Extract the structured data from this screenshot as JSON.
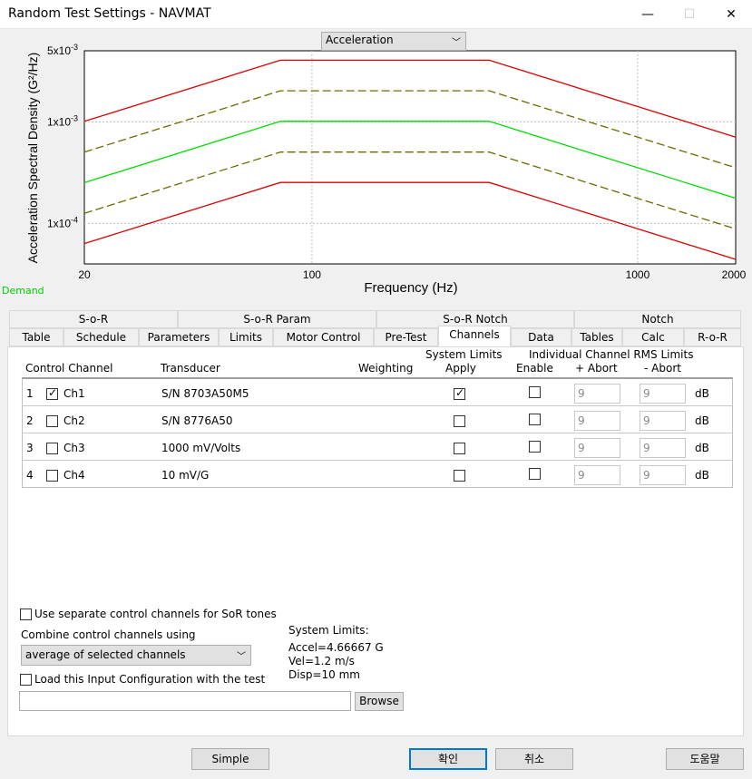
{
  "window": {
    "title": "Random Test Settings - NAVMAT",
    "controls": {
      "minimize": "—",
      "maximize": "☐",
      "close": "✕"
    }
  },
  "plot": {
    "selector_value": "Acceleration",
    "demand_label": "Demand"
  },
  "chart_data": {
    "type": "line",
    "xlabel": "Frequency (Hz)",
    "ylabel": "Acceleration Spectral Density (G²/Hz)",
    "x_scale": "log",
    "y_scale": "log",
    "xlim": [
      20,
      2000
    ],
    "ylim": [
      4e-05,
      0.005
    ],
    "x_ticks": [
      "20",
      "100",
      "1000",
      "2000"
    ],
    "y_ticks": [
      {
        "base": "5x10",
        "exp": "-3"
      },
      {
        "base": "1x10",
        "exp": "-3"
      },
      {
        "base": "1x10",
        "exp": "-4"
      }
    ],
    "grid": true,
    "series": [
      {
        "style": "solid",
        "color": "#dd0000",
        "x": [
          20,
          80,
          350,
          2000
        ],
        "y": [
          0.00101,
          0.00404,
          0.00404,
          0.000707
        ]
      },
      {
        "style": "dashed",
        "color": "#6b6b00",
        "x": [
          20,
          80,
          350,
          2000
        ],
        "y": [
          0.000504,
          0.00202,
          0.00202,
          0.000354
        ]
      },
      {
        "style": "solid",
        "color": "#00dd00",
        "x": [
          20,
          80,
          350,
          2000
        ],
        "y": [
          0.000252,
          0.00101,
          0.00101,
          0.000177
        ]
      },
      {
        "style": "dashed",
        "color": "#6b6b00",
        "x": [
          20,
          80,
          350,
          2000
        ],
        "y": [
          0.000126,
          0.000504,
          0.000504,
          8.84e-05
        ]
      },
      {
        "style": "solid",
        "color": "#dd0000",
        "x": [
          20,
          80,
          350,
          2000
        ],
        "y": [
          6.34e-05,
          0.000253,
          0.000253,
          4.43e-05
        ]
      }
    ]
  },
  "tabs": {
    "row1": [
      "S-o-R",
      "S-o-R Param",
      "S-o-R Notch",
      "Notch"
    ],
    "row2": [
      "Table",
      "Schedule",
      "Parameters",
      "Limits",
      "Motor Control",
      "Pre-Test",
      "Channels",
      "Data",
      "Tables",
      "Calc",
      "R-o-R"
    ],
    "active": "Channels"
  },
  "channels": {
    "headers": {
      "control_channel": "Control Channel",
      "transducer": "Transducer",
      "weighting": "Weighting",
      "system_limits_1": "System Limits",
      "system_limits_2": "Apply",
      "individual_1": "Individual Channel RMS Limits",
      "enable": "Enable",
      "plus_abort": "+ Abort",
      "minus_abort": "- Abort"
    },
    "rows": [
      {
        "num": "1",
        "checked": true,
        "name": "Ch1",
        "transducer": "S/N 8703A50M5",
        "apply": true,
        "enable": false,
        "plus": "9",
        "minus": "9",
        "unit": "dB"
      },
      {
        "num": "2",
        "checked": false,
        "name": "Ch2",
        "transducer": "S/N 8776A50",
        "apply": false,
        "enable": false,
        "plus": "9",
        "minus": "9",
        "unit": "dB"
      },
      {
        "num": "3",
        "checked": false,
        "name": "Ch3",
        "transducer": "1000 mV/Volts",
        "apply": false,
        "enable": false,
        "plus": "9",
        "minus": "9",
        "unit": "dB"
      },
      {
        "num": "4",
        "checked": false,
        "name": "Ch4",
        "transducer": "10 mV/G",
        "apply": false,
        "enable": false,
        "plus": "9",
        "minus": "9",
        "unit": "dB"
      }
    ]
  },
  "options": {
    "separate_sor": "Use separate control channels for SoR tones",
    "combine_label": "Combine control channels using",
    "combine_value": "average of selected channels",
    "load_config": "Load this Input Configuration with the test",
    "browse": "Browse"
  },
  "system_limits": {
    "title": "System Limits:",
    "accel": "Accel=4.66667 G",
    "vel": "Vel=1.2 m/s",
    "disp": "Disp=10 mm"
  },
  "footer": {
    "simple": "Simple",
    "ok": "확인",
    "cancel": "취소",
    "help": "도움말"
  }
}
